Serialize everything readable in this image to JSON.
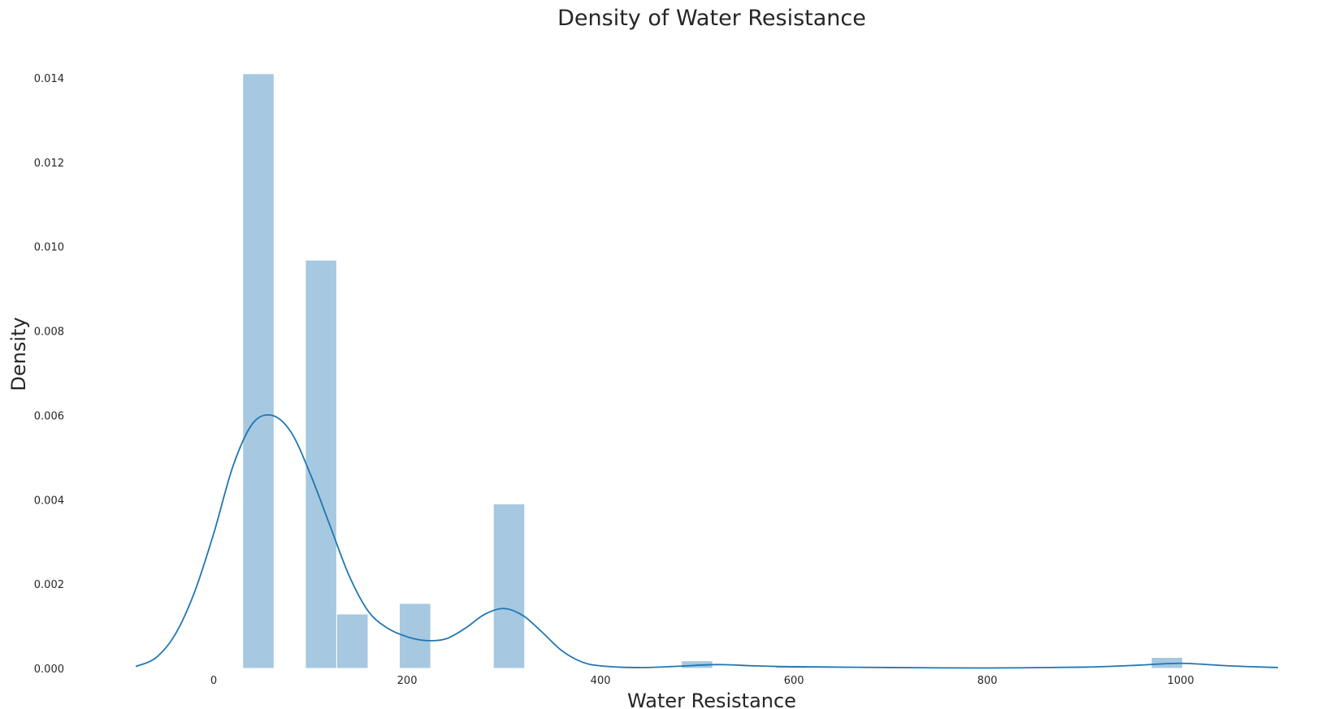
{
  "chart_data": {
    "type": "bar",
    "title": "Density of Water Resistance",
    "xlabel": "Water Resistance",
    "ylabel": "Density",
    "xlim": [
      -95,
      1115
    ],
    "ylim": [
      0,
      0.0145
    ],
    "xticks": [
      0,
      200,
      400,
      600,
      800,
      1000
    ],
    "yticks": [
      0.0,
      0.002,
      0.004,
      0.006,
      0.008,
      0.01,
      0.012,
      0.014
    ],
    "ytick_labels": [
      "0.000",
      "0.002",
      "0.004",
      "0.006",
      "0.008",
      "0.010",
      "0.012",
      "0.014"
    ],
    "grid": false,
    "histogram": {
      "bin_edges": [
        30,
        62.4,
        94.8,
        127.2,
        159.6,
        192,
        224.4,
        256.8,
        289.2,
        321.6,
        354,
        386.4,
        418.8,
        451.2,
        483.6,
        516,
        548.4,
        580.8,
        613.2,
        645.6,
        678,
        710.4,
        742.8,
        775.2,
        807.6,
        840,
        872.4,
        904.8,
        937.2,
        969.6,
        1002
      ],
      "values": [
        0.0141,
        0,
        0.00968,
        0.00129,
        0,
        0.00154,
        0,
        0,
        0.0039,
        0,
        0,
        0,
        0,
        0,
        0.00018,
        0,
        0,
        4e-05,
        0,
        0,
        0,
        0,
        0,
        0,
        0,
        0,
        0,
        0,
        0,
        0.00026
      ],
      "color": "#a6c8e0"
    },
    "kde": {
      "x": [
        -80,
        -60,
        -40,
        -20,
        0,
        20,
        40,
        60,
        80,
        100,
        120,
        140,
        160,
        180,
        200,
        220,
        240,
        260,
        280,
        300,
        320,
        340,
        360,
        380,
        400,
        440,
        480,
        520,
        560,
        600,
        700,
        800,
        900,
        950,
        1000,
        1050,
        1100
      ],
      "y": [
        5e-05,
        0.00025,
        0.0008,
        0.0018,
        0.0032,
        0.0048,
        0.0058,
        0.006,
        0.0056,
        0.0046,
        0.0034,
        0.0022,
        0.00135,
        0.00095,
        0.00075,
        0.00066,
        0.0007,
        0.00095,
        0.00128,
        0.00142,
        0.00125,
        0.00085,
        0.00042,
        0.00016,
        6e-05,
        2e-05,
        5e-05,
        9e-05,
        6e-05,
        4e-05,
        2e-05,
        1e-05,
        3e-05,
        7e-05,
        0.00012,
        6e-05,
        2e-05
      ],
      "color": "#1f77b4"
    }
  }
}
